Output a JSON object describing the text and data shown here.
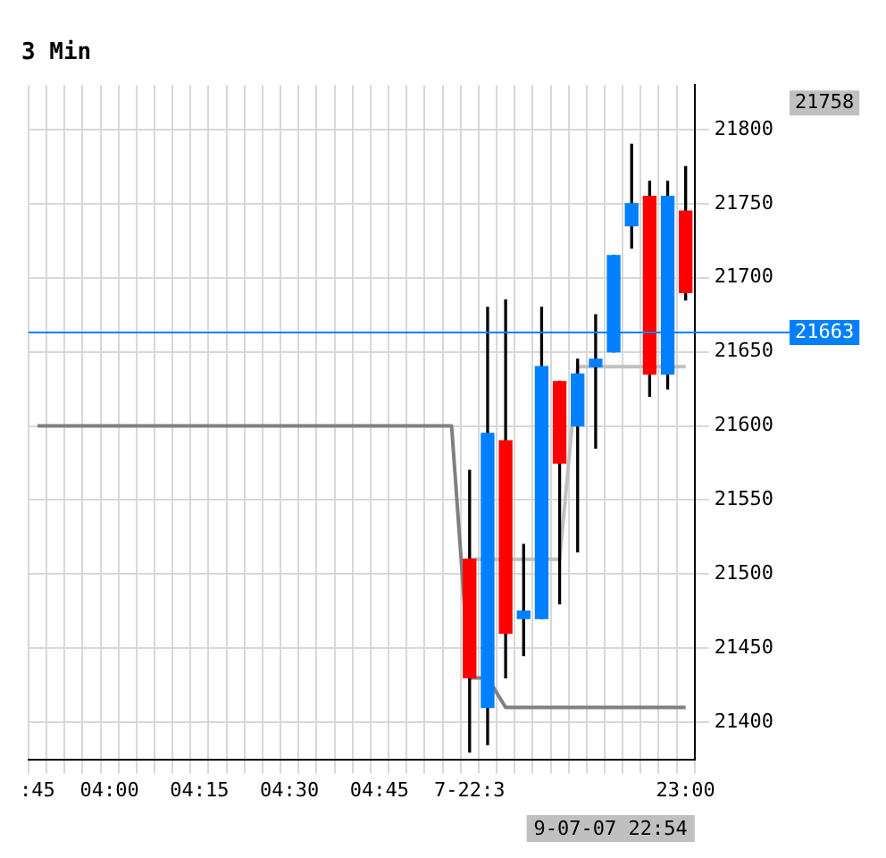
{
  "chart_data": {
    "type": "candlestick",
    "title": "3 Min",
    "categories": [
      ":45",
      null,
      null,
      null,
      "04:00",
      null,
      null,
      null,
      null,
      "04:15",
      null,
      null,
      null,
      null,
      "04:30",
      null,
      null,
      null,
      null,
      "04:45",
      null,
      null,
      null,
      null,
      "7-22:3",
      null,
      null,
      null,
      null,
      null,
      null,
      null,
      null,
      null,
      null,
      null,
      "23:00"
    ],
    "ohlc": [
      null,
      null,
      null,
      null,
      null,
      null,
      null,
      null,
      null,
      null,
      null,
      null,
      null,
      null,
      null,
      null,
      null,
      null,
      null,
      null,
      null,
      null,
      null,
      null,
      [
        21510,
        21570,
        21380,
        21430
      ],
      [
        21410,
        21680,
        21385,
        21595
      ],
      [
        21590,
        21685,
        21430,
        21460
      ],
      [
        21470,
        21520,
        21445,
        21475
      ],
      [
        21470,
        21680,
        21470,
        21640
      ],
      [
        21630,
        21630,
        21480,
        21575
      ],
      [
        21600,
        21645,
        21515,
        21635
      ],
      [
        21640,
        21675,
        21585,
        21645
      ],
      [
        21650,
        21715,
        21650,
        21715
      ],
      [
        21735,
        21790,
        21720,
        21750
      ],
      [
        21755,
        21765,
        21620,
        21635
      ],
      [
        21635,
        21765,
        21625,
        21755
      ],
      [
        21745,
        21775,
        21685,
        21690
      ]
    ],
    "colors": [
      null,
      null,
      null,
      null,
      null,
      null,
      null,
      null,
      null,
      null,
      null,
      null,
      null,
      null,
      null,
      null,
      null,
      null,
      null,
      null,
      null,
      null,
      null,
      null,
      "#ff0000",
      "#0080ff",
      "#ff0000",
      "#0080ff",
      "#0080ff",
      "#ff0000",
      "#0080ff",
      "#0080ff",
      "#0080ff",
      "#0080ff",
      "#ff0000",
      "#0080ff",
      "#ff0000"
    ],
    "series": [
      {
        "type": "line",
        "color": "#808080",
        "values": [
          21600,
          21600,
          21600,
          21600,
          21600,
          21600,
          21600,
          21600,
          21600,
          21600,
          21600,
          21600,
          21600,
          21600,
          21600,
          21600,
          21600,
          21600,
          21600,
          21600,
          21600,
          21600,
          21600,
          21600,
          21430,
          21430,
          21410,
          21410,
          21410,
          21410,
          21410,
          21410,
          21410,
          21410,
          21410,
          21410,
          21410
        ]
      },
      {
        "type": "line",
        "color": "#c0c0c0",
        "values": [
          null,
          null,
          null,
          null,
          null,
          null,
          null,
          null,
          null,
          null,
          null,
          null,
          null,
          null,
          null,
          null,
          null,
          null,
          null,
          null,
          null,
          null,
          null,
          null,
          21510,
          21510,
          21510,
          21510,
          21510,
          21510,
          21640,
          21640,
          21640,
          21640,
          21640,
          21640,
          21640
        ]
      }
    ],
    "ylim": [
      21375,
      21830
    ],
    "yticks": [
      21400,
      21450,
      21500,
      21550,
      21600,
      21650,
      21700,
      21750,
      21800
    ],
    "ref_lines": [
      {
        "axis": "y",
        "value": 21663,
        "label": "21663",
        "color": "#0080ff"
      }
    ],
    "annotations": [
      "21758",
      "9-07-07 22:54"
    ],
    "grid": true,
    "legend": false
  }
}
